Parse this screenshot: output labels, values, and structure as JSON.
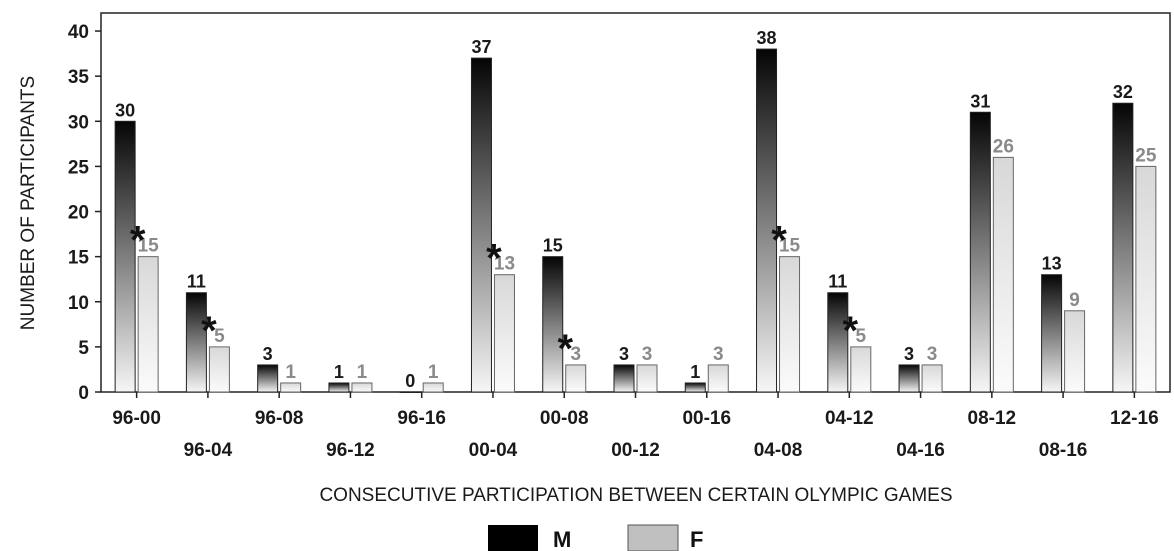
{
  "chart_data": {
    "type": "bar",
    "xlabel": "CONSECUTIVE PARTICIPATION BETWEEN CERTAIN OLYMPIC GAMES",
    "ylabel": "NUMBER OF PARTICIPANTS",
    "ylim": [
      0,
      42
    ],
    "yticks": [
      "0",
      "5",
      "10",
      "15",
      "20",
      "25",
      "30",
      "35",
      "40"
    ],
    "grid": false,
    "legend_position": "bottom-center",
    "categories": [
      "96-00",
      "96-04",
      "96-08",
      "96-12",
      "96-16",
      "00-04",
      "00-08",
      "00-12",
      "00-16",
      "04-08",
      "04-12",
      "04-16",
      "08-12",
      "08-16",
      "12-16"
    ],
    "series": [
      {
        "name": "M",
        "values": [
          30,
          11,
          3,
          1,
          0,
          37,
          15,
          3,
          1,
          38,
          11,
          3,
          31,
          13,
          32
        ],
        "color": "#000000"
      },
      {
        "name": "F",
        "values": [
          15,
          5,
          1,
          1,
          1,
          13,
          3,
          3,
          3,
          15,
          5,
          3,
          26,
          9,
          25
        ],
        "color": "#bdbdbd"
      }
    ],
    "significance_marker": "*",
    "significant_categories": [
      "96-00",
      "96-04",
      "00-04",
      "00-08",
      "04-08",
      "04-12"
    ]
  }
}
